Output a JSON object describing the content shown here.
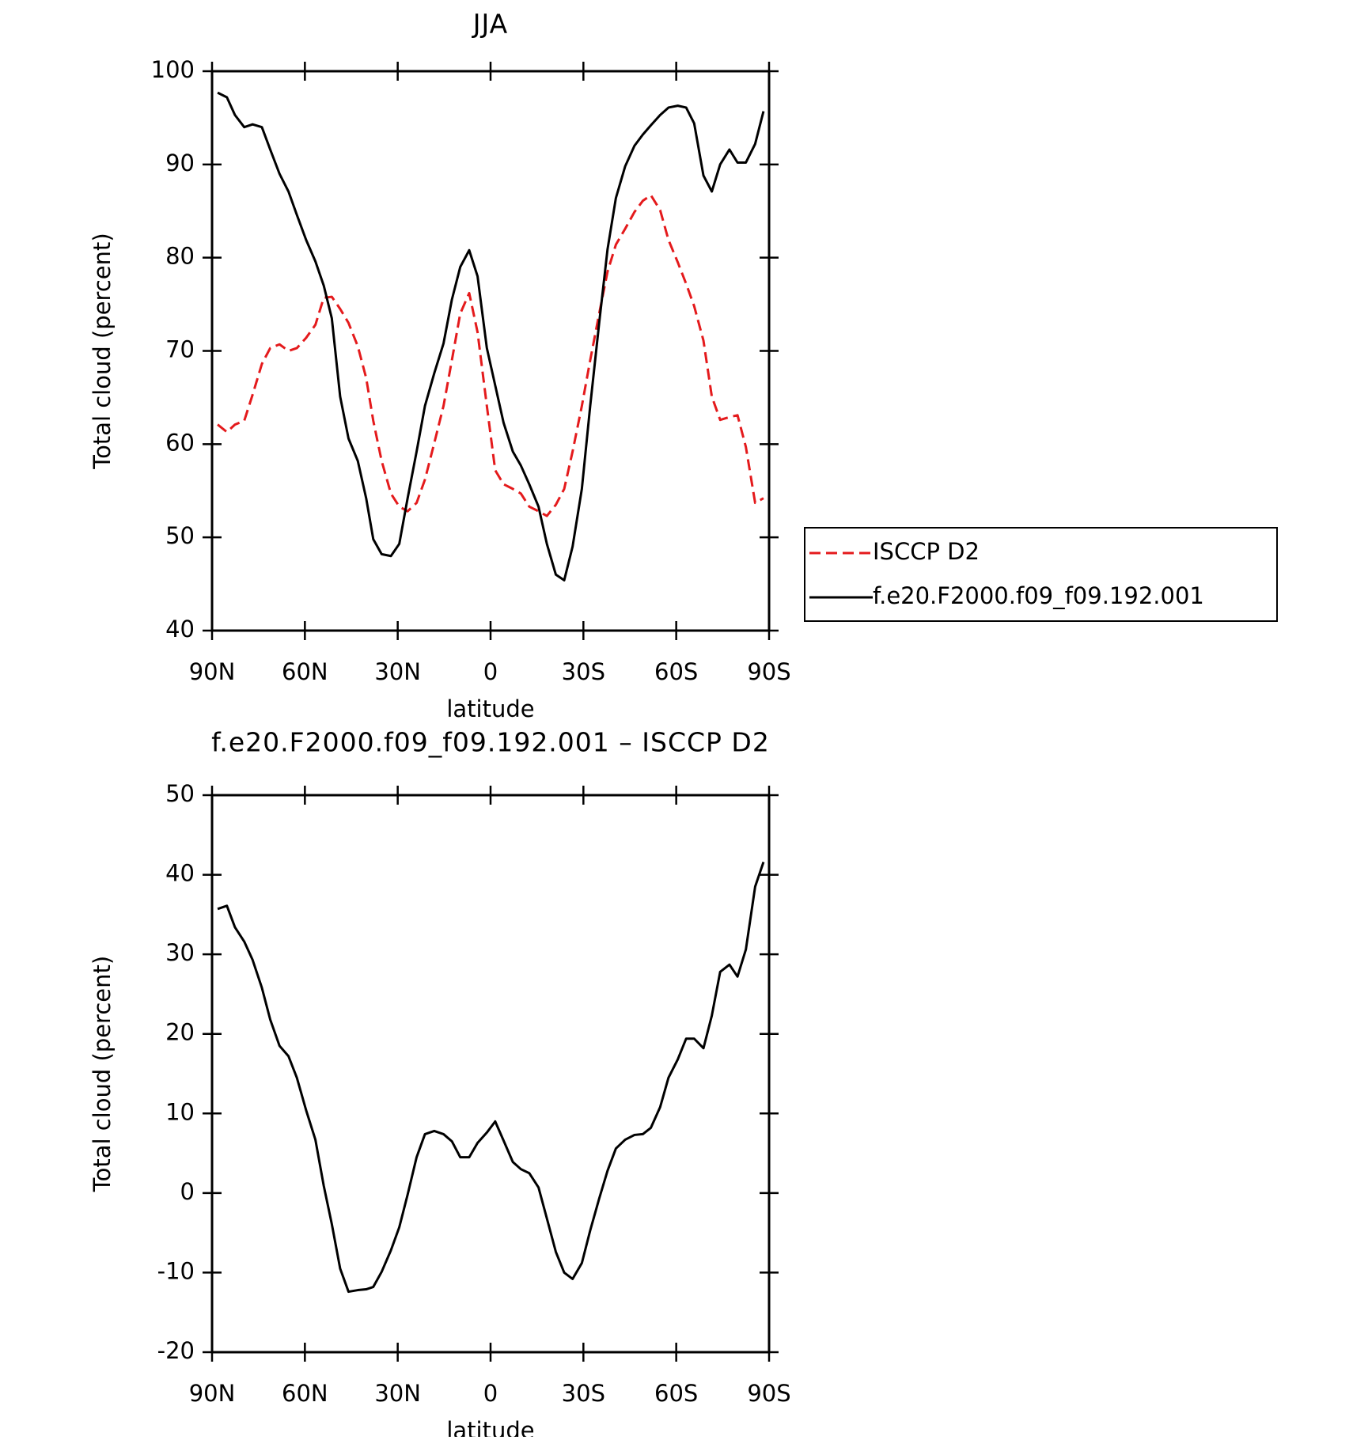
{
  "chart_data": [
    {
      "type": "line",
      "title": "JJA",
      "xlabel": "latitude",
      "ylabel": "Total cloud (percent)",
      "x": [
        88.2,
        85.2,
        82.6,
        79.6,
        76.9,
        73.9,
        71.2,
        68.2,
        65.3,
        62.6,
        59.6,
        56.6,
        53.9,
        51.3,
        48.6,
        45.9,
        42.9,
        40.2,
        37.9,
        35.2,
        32.2,
        29.5,
        26.8,
        23.9,
        21.2,
        18.2,
        15.2,
        12.5,
        9.8,
        6.9,
        4.2,
        1.2,
        -1.5,
        -4.2,
        -7.2,
        -9.8,
        -12.5,
        -15.5,
        -18.2,
        -21.1,
        -23.8,
        -26.5,
        -29.5,
        -32.2,
        -35.1,
        -37.8,
        -40.5,
        -43.5,
        -46.5,
        -49.2,
        -51.8,
        -54.8,
        -57.5,
        -60.5,
        -63.2,
        -65.8,
        -68.8,
        -71.5,
        -74.2,
        -77.2,
        -79.8,
        -82.5,
        -85.5,
        -88.2
      ],
      "series": [
        {
          "name": "ISCCP D2",
          "color": "#e41a1c",
          "dash": true,
          "values": [
            62.1,
            61.3,
            62.1,
            62.5,
            65.3,
            68.6,
            70.3,
            70.7,
            70.0,
            70.3,
            71.4,
            72.8,
            75.7,
            75.8,
            74.5,
            73.0,
            70.5,
            67.1,
            62.5,
            58.2,
            54.7,
            53.3,
            52.8,
            53.7,
            56.2,
            60.1,
            64.1,
            69.0,
            74.0,
            76.2,
            72.0,
            64.1,
            57.2,
            55.7,
            55.2,
            54.7,
            53.3,
            52.8,
            52.3,
            53.5,
            55.2,
            59.2,
            64.1,
            69.0,
            74.0,
            78.5,
            81.4,
            83.1,
            84.9,
            86.1,
            86.7,
            85.1,
            81.9,
            79.5,
            77.2,
            74.8,
            71.1,
            65.1,
            62.6,
            62.9,
            63.1,
            59.7,
            53.7,
            54.2
          ]
        },
        {
          "name": "f.e20.F2000.f09_f09.192.001",
          "color": "#000000",
          "dash": false,
          "values": [
            97.7,
            97.2,
            95.3,
            94.0,
            94.3,
            94.0,
            91.6,
            89.0,
            87.1,
            84.6,
            81.9,
            79.6,
            77.0,
            73.5,
            65.1,
            60.6,
            58.2,
            54.2,
            49.8,
            48.2,
            48.0,
            49.3,
            54.2,
            59.2,
            64.1,
            67.6,
            70.8,
            75.5,
            79.0,
            80.8,
            78.0,
            70.3,
            66.3,
            62.3,
            59.2,
            57.7,
            55.7,
            53.3,
            49.3,
            46.0,
            45.4,
            49.0,
            55.2,
            64.1,
            73.0,
            80.9,
            86.4,
            89.8,
            92.0,
            93.2,
            94.2,
            95.3,
            96.1,
            96.3,
            96.1,
            94.4,
            88.8,
            87.1,
            90.0,
            91.6,
            90.2,
            90.2,
            92.2,
            95.7
          ]
        }
      ],
      "xlim": [
        90,
        -90
      ],
      "xticks": [
        {
          "value": 90,
          "label": "90N"
        },
        {
          "value": 60,
          "label": "60N"
        },
        {
          "value": 30,
          "label": "30N"
        },
        0,
        {
          "value": -30,
          "label": "30S"
        },
        {
          "value": -60,
          "label": "60S"
        },
        {
          "value": -90,
          "label": "90S"
        }
      ],
      "ylim": [
        40,
        100
      ],
      "yticks": [
        40,
        50,
        60,
        70,
        80,
        90,
        100
      ],
      "legend": "right"
    },
    {
      "type": "line",
      "title": "f.e20.F2000.f09_f09.192.001 – ISCCP D2",
      "xlabel": "latitude",
      "ylabel": "Total cloud (percent)",
      "x": [
        88.2,
        85.2,
        82.6,
        79.6,
        76.9,
        73.9,
        71.2,
        68.2,
        65.3,
        62.6,
        59.6,
        56.6,
        53.9,
        51.3,
        48.6,
        45.9,
        42.9,
        40.2,
        37.9,
        35.2,
        32.2,
        29.5,
        26.8,
        23.9,
        21.2,
        18.2,
        15.2,
        12.5,
        9.8,
        6.9,
        4.2,
        1.2,
        -1.5,
        -4.2,
        -7.2,
        -9.8,
        -12.5,
        -15.5,
        -18.2,
        -21.1,
        -23.8,
        -26.5,
        -29.5,
        -32.2,
        -35.1,
        -37.8,
        -40.5,
        -43.5,
        -46.5,
        -49.2,
        -51.8,
        -54.8,
        -57.5,
        -60.5,
        -63.2,
        -65.8,
        -68.8,
        -71.5,
        -74.2,
        -77.2,
        -79.8,
        -82.5,
        -85.5,
        -88.2
      ],
      "series": [
        {
          "color": "#000000",
          "dash": false,
          "values": [
            35.7,
            36.1,
            33.4,
            31.6,
            29.3,
            25.8,
            21.8,
            18.5,
            17.2,
            14.5,
            10.4,
            6.7,
            0.9,
            -3.9,
            -9.5,
            -12.4,
            -12.2,
            -12.1,
            -11.8,
            -9.9,
            -7.2,
            -4.3,
            -0.2,
            4.5,
            7.4,
            7.8,
            7.4,
            6.5,
            4.5,
            4.5,
            6.3,
            7.6,
            9.0,
            6.6,
            3.9,
            3.0,
            2.5,
            0.7,
            -3.2,
            -7.4,
            -10.0,
            -10.8,
            -8.8,
            -4.7,
            -0.7,
            2.8,
            5.6,
            6.7,
            7.3,
            7.4,
            8.2,
            10.8,
            14.5,
            16.8,
            19.4,
            19.4,
            18.2,
            22.3,
            27.8,
            28.7,
            27.2,
            30.6,
            38.5,
            41.6
          ]
        }
      ],
      "xlim": [
        90,
        -90
      ],
      "xticks": [
        {
          "value": 90,
          "label": "90N"
        },
        {
          "value": 60,
          "label": "60N"
        },
        {
          "value": 30,
          "label": "30N"
        },
        0,
        {
          "value": -30,
          "label": "30S"
        },
        {
          "value": -60,
          "label": "60S"
        },
        {
          "value": -90,
          "label": "90S"
        }
      ],
      "ylim": [
        -20,
        50
      ],
      "yticks": [
        -20,
        -10,
        0,
        10,
        20,
        30,
        40,
        50
      ]
    }
  ]
}
